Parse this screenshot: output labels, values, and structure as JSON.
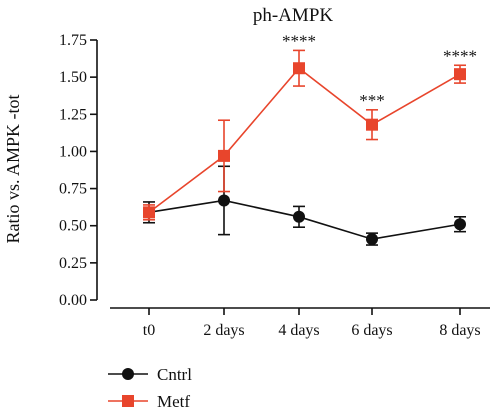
{
  "chart_data": {
    "type": "line",
    "title": "ph-AMPK",
    "xlabel": "",
    "ylabel": "Ratio vs. AMPK -tot",
    "categories": [
      "t0",
      "2 days",
      "4 days",
      "6 days",
      "8 days"
    ],
    "ylim": [
      0,
      1.75
    ],
    "yticks": [
      "0.00",
      "0.25",
      "0.50",
      "0.75",
      "1.00",
      "1.25",
      "1.50",
      "1.75"
    ],
    "grid": false,
    "legend_position": "bottom-left",
    "series": [
      {
        "name": "Cntrl",
        "color": "#111111",
        "marker": "circle",
        "values": [
          0.59,
          0.67,
          0.56,
          0.41,
          0.51
        ],
        "errors": [
          0.07,
          0.23,
          0.07,
          0.04,
          0.05
        ]
      },
      {
        "name": "Metf",
        "color": "#e8452c",
        "marker": "square",
        "values": [
          0.59,
          0.97,
          1.56,
          1.18,
          1.52
        ],
        "errors": [
          0.05,
          0.24,
          0.12,
          0.1,
          0.06
        ]
      }
    ],
    "annotations": [
      "",
      "",
      "****",
      "***",
      "****"
    ]
  }
}
